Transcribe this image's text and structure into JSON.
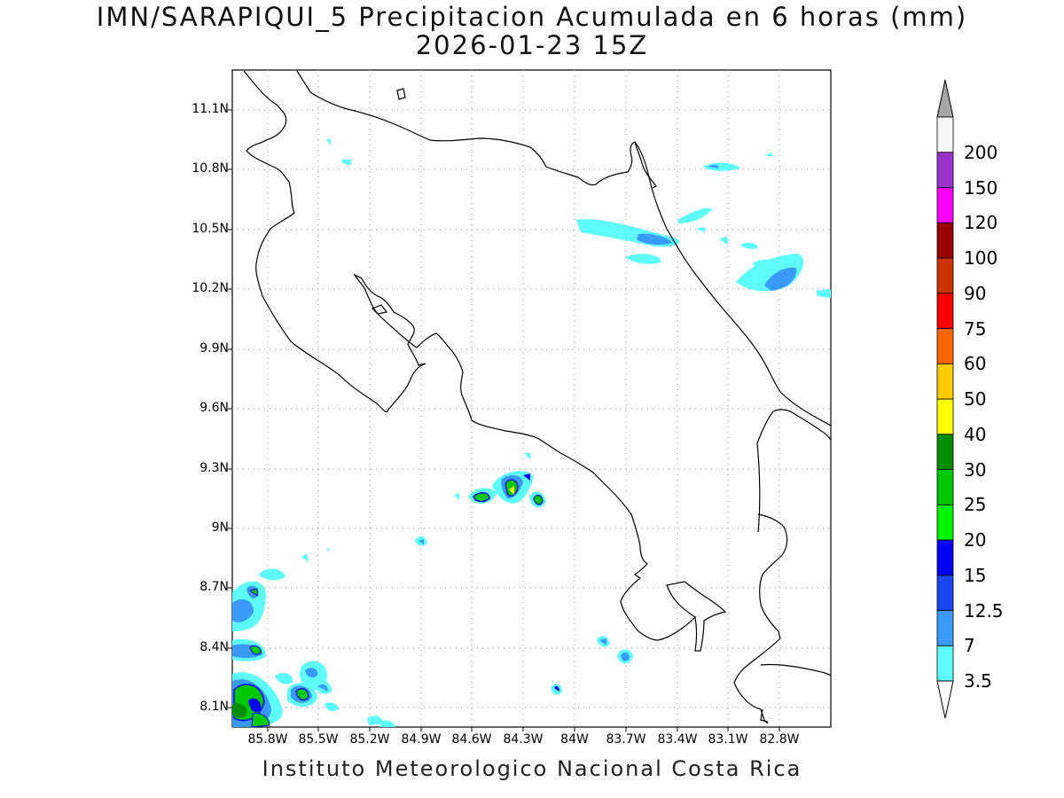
{
  "title": {
    "line1": "IMN/SARAPIQUI_5 Precipitacion Acumulada en 6 horas (mm)",
    "line2": "2026-01-23 15Z"
  },
  "axes": {
    "lat_ticks": [
      "11.1N",
      "10.8N",
      "10.5N",
      "10.2N",
      "9.9N",
      "9.6N",
      "9.3N",
      "9N",
      "8.7N",
      "8.4N",
      "8.1N"
    ],
    "lon_ticks": [
      "85.8W",
      "85.5W",
      "85.2W",
      "84.9W",
      "84.6W",
      "84.3W",
      "84W",
      "83.7W",
      "83.4W",
      "83.1W",
      "82.8W"
    ]
  },
  "footer": "Instituto Meteorologico Nacional Costa Rica",
  "colorbar": {
    "levels": [
      "3.5",
      "7",
      "12.5",
      "15",
      "20",
      "25",
      "30",
      "40",
      "50",
      "60",
      "75",
      "90",
      "100",
      "120",
      "150",
      "200"
    ],
    "colors": [
      "#5ffcfc",
      "#3a9af9",
      "#1a47f0",
      "#0000f5",
      "#00f400",
      "#00c800",
      "#008f00",
      "#ffff00",
      "#ffcc00",
      "#ff6600",
      "#ff0000",
      "#cc3300",
      "#990000",
      "#ff00ff",
      "#9933cc",
      "#f7f7f7"
    ],
    "over_color": "#a6a6a6",
    "under_color": "#ffffff"
  }
}
